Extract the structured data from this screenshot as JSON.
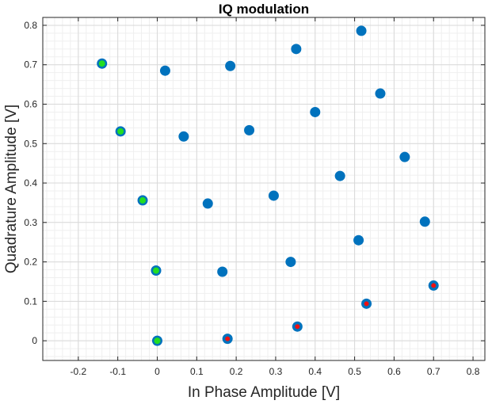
{
  "chart_data": {
    "type": "scatter",
    "title": "IQ modulation",
    "xlabel": "In Phase Amplitude [V]",
    "ylabel": "Quadrature Amplitude [V]",
    "xlim": [
      -0.29,
      0.83
    ],
    "ylim": [
      -0.05,
      0.82
    ],
    "xticks": [
      -0.2,
      -0.1,
      0,
      0.1,
      0.2,
      0.3,
      0.4,
      0.5,
      0.6,
      0.7,
      0.8
    ],
    "yticks": [
      0,
      0.1,
      0.2,
      0.3,
      0.4,
      0.5,
      0.6,
      0.7,
      0.8
    ],
    "xtick_labels": [
      "-0.2",
      "-0.1",
      "0",
      "0.1",
      "0.2",
      "0.3",
      "0.4",
      "0.5",
      "0.6",
      "0.7",
      "0.8"
    ],
    "ytick_labels": [
      "0",
      "0.1",
      "0.2",
      "0.3",
      "0.4",
      "0.5",
      "0.6",
      "0.7",
      "0.8"
    ],
    "grid": true,
    "minor_grid": true,
    "colors": {
      "marker": "#0072BD",
      "inner_green": "#22DD22",
      "inner_red": "#EE1111",
      "grid_major": "#D9D9D9",
      "grid_minor": "#EFEFEF",
      "axes": "#262626"
    },
    "series": [
      {
        "marker": "filled-circle",
        "color": "#0072BD",
        "points": [
          [
            0.0,
            0.0
          ],
          [
            0.178,
            0.005
          ],
          [
            0.355,
            0.036
          ],
          [
            0.53,
            0.094
          ],
          [
            0.7,
            0.14
          ],
          [
            -0.003,
            0.178
          ],
          [
            0.165,
            0.175
          ],
          [
            0.338,
            0.2
          ],
          [
            0.51,
            0.255
          ],
          [
            0.678,
            0.302
          ],
          [
            -0.037,
            0.356
          ],
          [
            0.128,
            0.348
          ],
          [
            0.295,
            0.368
          ],
          [
            0.463,
            0.418
          ],
          [
            0.627,
            0.466
          ],
          [
            -0.093,
            0.531
          ],
          [
            0.067,
            0.518
          ],
          [
            0.233,
            0.534
          ],
          [
            0.4,
            0.58
          ],
          [
            0.565,
            0.627
          ],
          [
            -0.14,
            0.703
          ],
          [
            0.02,
            0.685
          ],
          [
            0.185,
            0.697
          ],
          [
            0.352,
            0.74
          ],
          [
            0.517,
            0.786
          ]
        ]
      },
      {
        "marker": "inner-dot",
        "color": "#22DD22",
        "points": [
          [
            0.0,
            0.0
          ],
          [
            -0.003,
            0.178
          ],
          [
            -0.037,
            0.356
          ],
          [
            -0.093,
            0.531
          ],
          [
            -0.14,
            0.703
          ]
        ]
      },
      {
        "marker": "inner-dot",
        "color": "#EE1111",
        "points": [
          [
            0.178,
            0.005
          ],
          [
            0.355,
            0.036
          ],
          [
            0.53,
            0.094
          ],
          [
            0.7,
            0.14
          ]
        ]
      }
    ]
  }
}
